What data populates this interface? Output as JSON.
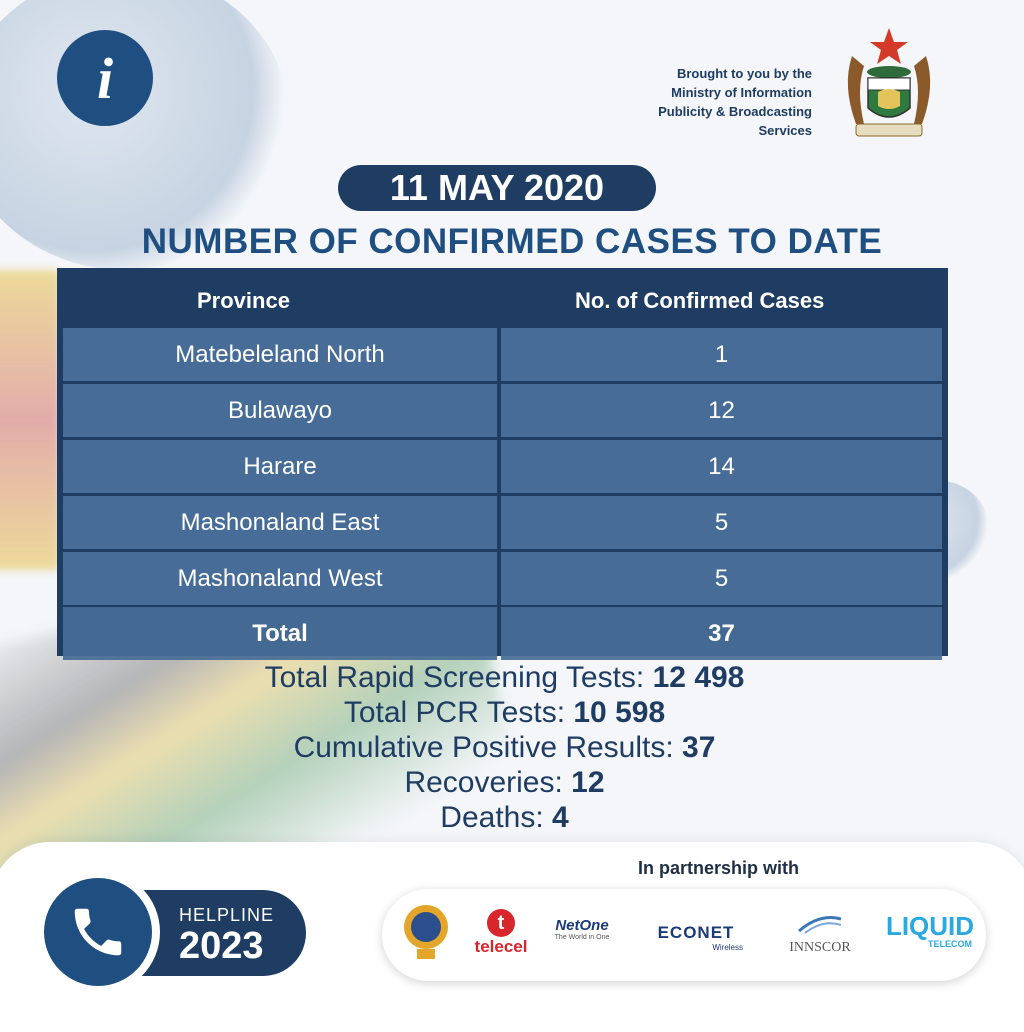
{
  "header": {
    "info_icon": "i",
    "brought_lines": [
      "Brought to you by the",
      "Ministry of Information",
      "Publicity & Broadcasting",
      "Services"
    ],
    "coat_of_arms_icon": "zimbabwe-coat-of-arms"
  },
  "date": "11 MAY 2020",
  "title": "NUMBER OF CONFIRMED CASES TO DATE",
  "table": {
    "headers": [
      "Province",
      "No. of Confirmed Cases"
    ],
    "rows": [
      {
        "province": "Matebeleland North",
        "cases": "1"
      },
      {
        "province": "Bulawayo",
        "cases": "12"
      },
      {
        "province": "Harare",
        "cases": "14"
      },
      {
        "province": "Mashonaland East",
        "cases": "5"
      },
      {
        "province": "Mashonaland West",
        "cases": "5"
      }
    ],
    "total_label": "Total",
    "total_value": "37"
  },
  "stats": [
    {
      "label": "Total Rapid Screening Tests: ",
      "value": "12 498"
    },
    {
      "label": "Total PCR Tests: ",
      "value": "10 598"
    },
    {
      "label": "Cumulative Positive Results: ",
      "value": "37"
    },
    {
      "label": "Recoveries: ",
      "value": "12"
    },
    {
      "label": "Deaths: ",
      "value": "4"
    }
  ],
  "helpline": {
    "label": "HELPLINE",
    "number": "2023",
    "icon": "phone-icon"
  },
  "partners": {
    "title": "In partnership with",
    "logos": {
      "telecel": "telecel",
      "telecel_mark": "t",
      "netone": "NetOne",
      "netone_tag": "The World in One",
      "econet": "ECONET",
      "econet_sub": "Wireless",
      "innscor": "INNSCOR",
      "liquid": "LIQUID",
      "liquid_sub": "TELECOM"
    }
  },
  "colors": {
    "navy": "#1f3d63",
    "blue": "#1f4e80",
    "row": "#5076a2"
  }
}
